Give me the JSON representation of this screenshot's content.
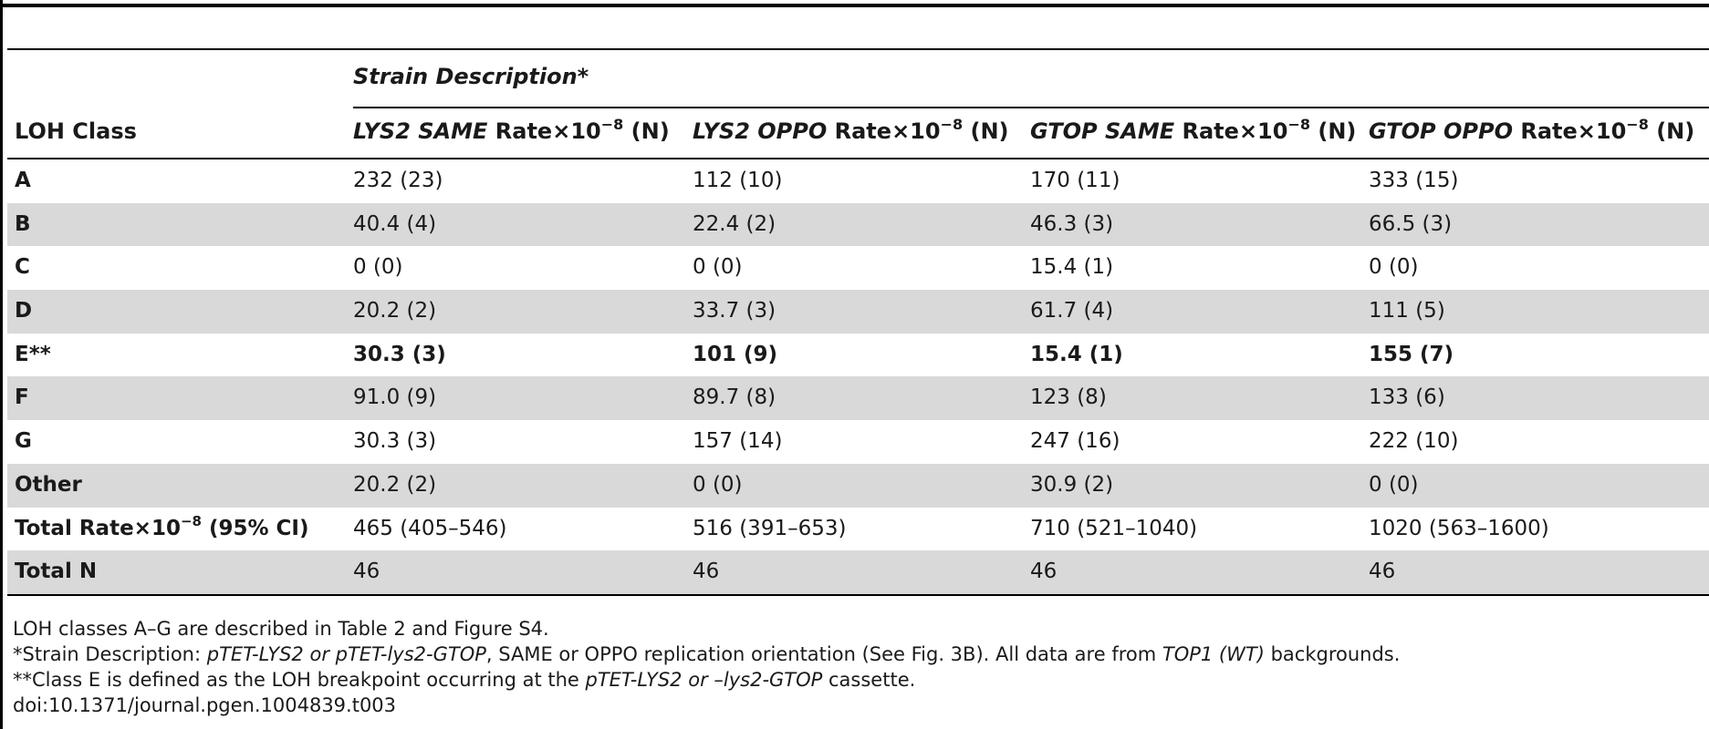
{
  "table": {
    "strain_description": "Strain Description*",
    "header": {
      "loh_class": "LOH Class",
      "rate_suffix": "Rate",
      "times": "×10",
      "exponent": "−8",
      "n_suffix": "(N)",
      "columns": [
        {
          "gene": "LYS2 SAME"
        },
        {
          "gene": "LYS2 OPPO"
        },
        {
          "gene": "GTOP SAME"
        },
        {
          "gene": "GTOP OPPO"
        }
      ]
    },
    "rows": [
      {
        "label": "A",
        "values": [
          "232 (23)",
          "112 (10)",
          "170 (11)",
          "333 (15)"
        ]
      },
      {
        "label": "B",
        "values": [
          "40.4 (4)",
          "22.4 (2)",
          "46.3 (3)",
          "66.5 (3)"
        ]
      },
      {
        "label": "C",
        "values": [
          "0 (0)",
          "0 (0)",
          "15.4 (1)",
          "0 (0)"
        ]
      },
      {
        "label": "D",
        "values": [
          "20.2 (2)",
          "33.7 (3)",
          "61.7 (4)",
          "111 (5)"
        ]
      },
      {
        "label": "E**",
        "values": [
          "30.3 (3)",
          "101 (9)",
          "15.4 (1)",
          "155 (7)"
        ]
      },
      {
        "label": "F",
        "values": [
          "91.0 (9)",
          "89.7 (8)",
          "123 (8)",
          "133 (6)"
        ]
      },
      {
        "label": "G",
        "values": [
          "30.3 (3)",
          "157 (14)",
          "247 (16)",
          "222 (10)"
        ]
      },
      {
        "label": "Other",
        "values": [
          "20.2 (2)",
          "0 (0)",
          "30.9 (2)",
          "0 (0)"
        ]
      },
      {
        "label_main": "Total Rate",
        "label_times": "×10",
        "label_exp": "−8",
        "label_ci": "(95% CI)",
        "values": [
          "465 (405–546)",
          "516 (391–653)",
          "710 (521–1040)",
          "1020 (563–1600)"
        ]
      },
      {
        "label": "Total N",
        "values": [
          "46",
          "46",
          "46",
          "46"
        ]
      }
    ]
  },
  "footnotes": {
    "line1": "LOH classes A–G are described in Table 2 and Figure S4.",
    "line2_a": "*Strain Description: ",
    "line2_b": "pTET-LYS2 or pTET-lys2-GTOP",
    "line2_c": ", SAME or OPPO replication orientation (See Fig. 3B). All data are from ",
    "line2_d": "TOP1 (WT)",
    "line2_e": " backgrounds.",
    "line3_a": "**Class E is defined as the LOH breakpoint occurring at the ",
    "line3_b": "pTET-LYS2 or –lys2-GTOP",
    "line3_c": " cassette.",
    "line4": "doi:10.1371/journal.pgen.1004839.t003"
  }
}
